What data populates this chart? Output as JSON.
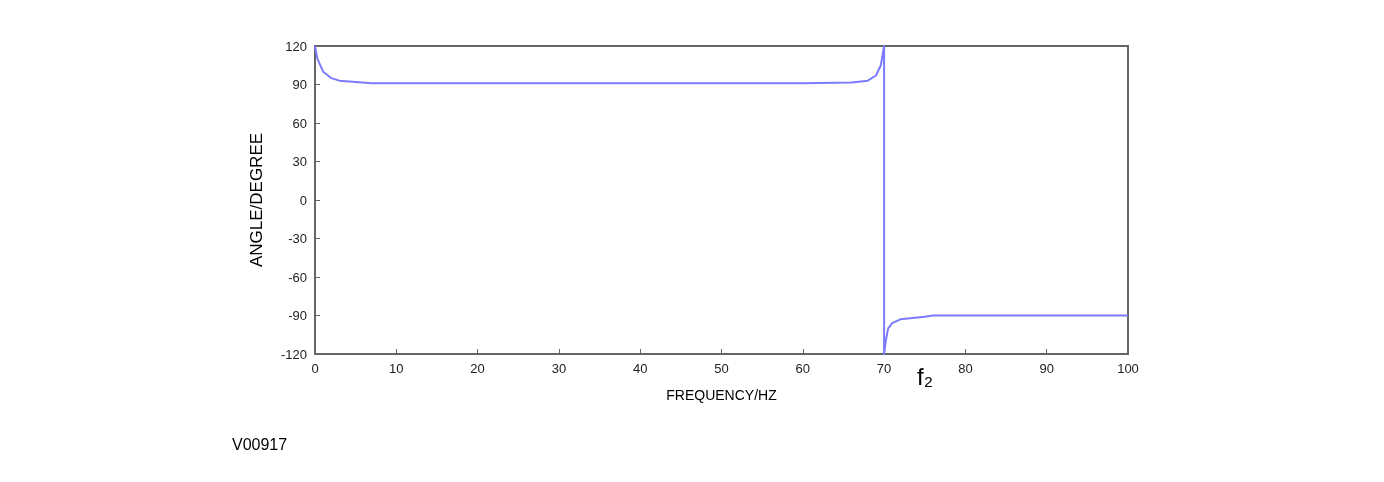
{
  "chart_data": {
    "type": "line",
    "xlabel": "FREQUENCY/HZ",
    "ylabel": "ANGLE/DEGREE",
    "x": [
      0,
      0.3,
      1,
      2,
      3,
      5,
      7,
      60,
      66,
      68,
      69,
      69.6,
      70,
      70,
      70.2,
      70.5,
      71,
      72,
      75,
      76,
      100
    ],
    "series": [
      {
        "color": "#7b7bff",
        "values": [
          120,
          110,
          100,
          95,
          93,
          92,
          91,
          91,
          91.5,
          93,
          97,
          105,
          120,
          -120,
          -110,
          -100,
          -96,
          -93,
          -91,
          -90,
          -90
        ]
      }
    ],
    "xlim": [
      0,
      100
    ],
    "xticks": [
      0,
      10,
      20,
      30,
      40,
      50,
      60,
      70,
      80,
      90,
      100
    ],
    "ylim": [
      -120,
      120
    ],
    "yticks": [
      -120,
      -90,
      -60,
      -30,
      0,
      30,
      60,
      90,
      120
    ],
    "grid": false,
    "marker": "none",
    "line_style": "solid",
    "annotations": [
      "f₂",
      "V00917"
    ]
  }
}
